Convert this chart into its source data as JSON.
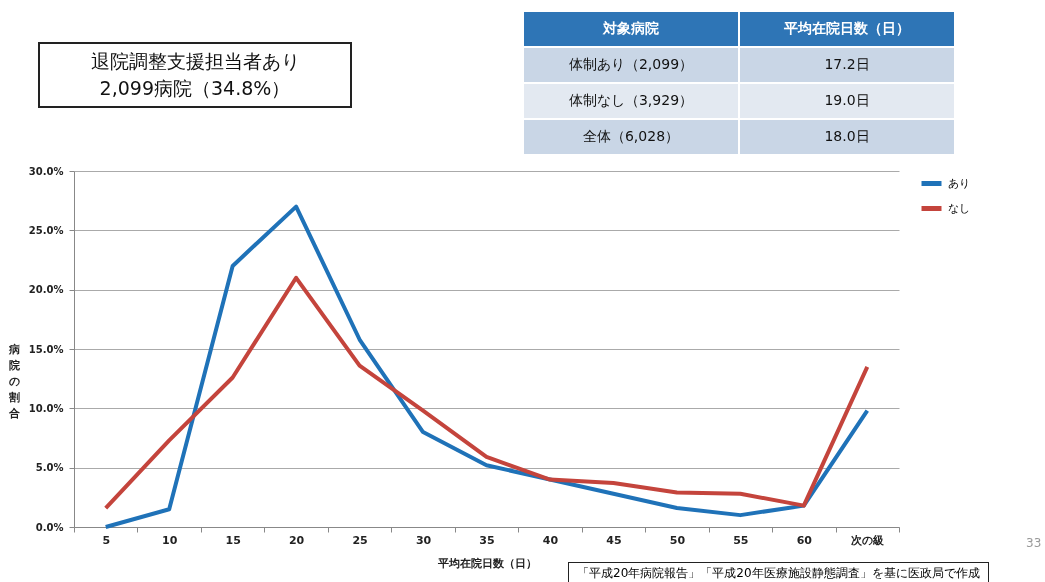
{
  "chart_data": [
    {
      "type": "other",
      "annotations": [
        "退院調整支援担当者あり\n2,099病院（34.8%）",
        "対象病院",
        "平均在院日数（日）",
        "体制あり（2,099）",
        "17.2日",
        "体制なし（3,929）",
        "19.0日",
        "全体（6,028）",
        "18.0日"
      ]
    },
    {
      "type": "line",
      "xlabel": "平均在院日数（日）",
      "ylabel": "病院の割合",
      "categories": [
        "5",
        "10",
        "15",
        "20",
        "25",
        "30",
        "35",
        "40",
        "45",
        "50",
        "55",
        "60",
        "次の級"
      ],
      "series": [
        {
          "name": "あり",
          "color": "#1f72b8",
          "values": [
            0.0,
            1.5,
            22.0,
            27.0,
            15.8,
            8.0,
            5.2,
            4.0,
            2.8,
            1.6,
            1.0,
            1.8,
            9.8
          ]
        },
        {
          "name": "なし",
          "color": "#c4443c",
          "values": [
            1.6,
            7.3,
            12.6,
            21.0,
            13.6,
            9.8,
            5.9,
            4.0,
            3.7,
            2.9,
            2.8,
            1.8,
            13.5
          ]
        }
      ],
      "ylim": [
        0,
        30
      ],
      "yticks": [
        {
          "value": 0,
          "label": "0.0%"
        },
        {
          "value": 5,
          "label": "5.0%"
        },
        {
          "value": 10,
          "label": "10.0%"
        },
        {
          "value": 15,
          "label": "15.0%"
        },
        {
          "value": 20,
          "label": "20.0%"
        },
        {
          "value": 25,
          "label": "25.0%"
        },
        {
          "value": 30,
          "label": "30.0%"
        }
      ],
      "grid": "y",
      "legend": "right",
      "marker": "none",
      "line_style": "solid",
      "annotations": [
        "「平成20年病院報告」「平成20年医療施設静態調査」を基に医政局で作成",
        "33"
      ]
    }
  ]
}
